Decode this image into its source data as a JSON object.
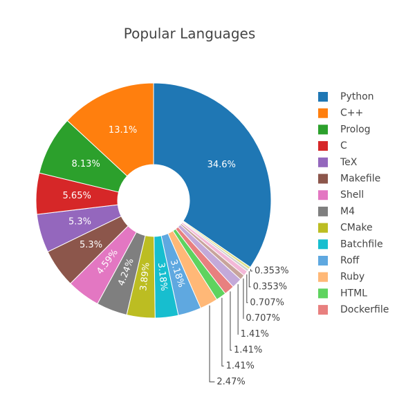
{
  "chart_data": {
    "type": "pie",
    "title": "Popular Languages",
    "hole": true,
    "categories": [
      "Python",
      "C++",
      "Prolog",
      "C",
      "TeX",
      "Makefile",
      "Shell",
      "M4",
      "CMake",
      "Batchfile",
      "Roff",
      "Ruby",
      "HTML",
      "Dockerfile",
      null,
      null,
      null,
      null,
      null
    ],
    "values": [
      34.6,
      13.1,
      8.13,
      5.65,
      5.3,
      5.3,
      4.59,
      4.24,
      3.89,
      3.18,
      3.18,
      2.47,
      1.41,
      1.41,
      1.41,
      0.707,
      0.707,
      0.353,
      0.353
    ],
    "value_labels": [
      "34.6%",
      "13.1%",
      "8.13%",
      "5.65%",
      "5.3%",
      "5.3%",
      "4.59%",
      "4.24%",
      "3.89%",
      "3.18%",
      "3.18%",
      "2.47%",
      "1.41%",
      "1.41%",
      "1.41%",
      "0.707%",
      "0.707%",
      "0.353%",
      "0.353%"
    ],
    "colors": [
      "#1f77b4",
      "#ff7f0e",
      "#2ca02c",
      "#d62728",
      "#9467bd",
      "#8c564b",
      "#e377c2",
      "#7f7f7f",
      "#bcbd22",
      "#17becf",
      "#5fa8e0",
      "#ffb877",
      "#5fd35f",
      "#e8807f",
      "#c3a9d9",
      "#c8a49b",
      "#f3b8d8",
      "#cfcfcf",
      "#dfe08a"
    ]
  }
}
